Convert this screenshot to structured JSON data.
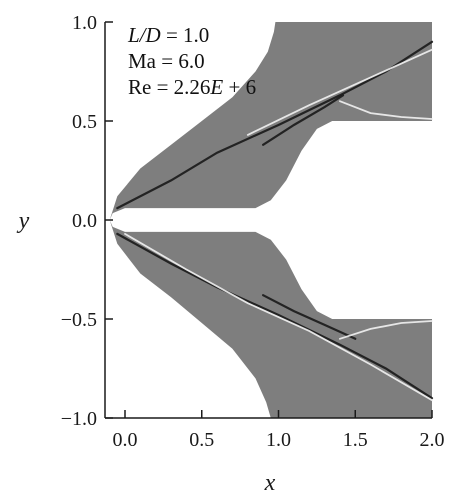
{
  "chart_data": {
    "type": "contour",
    "title": "",
    "xlabel": "x",
    "ylabel": "y",
    "xlim": [
      -0.15,
      2.0
    ],
    "ylim": [
      -1.0,
      1.0
    ],
    "x_ticks": [
      "0.0",
      "0.5",
      "1.0",
      "1.5",
      "2.0"
    ],
    "x_tick_values": [
      0.0,
      0.5,
      1.0,
      1.5,
      2.0
    ],
    "y_ticks": [
      "1.0",
      "0.5",
      "0.0",
      "−0.5",
      "−1.0"
    ],
    "y_tick_values": [
      1.0,
      0.5,
      0.0,
      -0.5,
      -1.0
    ],
    "grid": false,
    "legend": "none",
    "annotations": {
      "line1_var": "L/D",
      "line1_value": "1.0",
      "line2": "Ma = 6.0",
      "line3_prefix": "Re = 2.26",
      "line3_var": "E",
      "line3_suffix": "+ 6"
    },
    "colors": {
      "field": "#7e7e7e",
      "shock_dark": "#1a1a1a",
      "shock_light": "#f2f2f2",
      "background": "#ffffff"
    },
    "upper_domain_outline": [
      [
        -0.1,
        0.0
      ],
      [
        -0.05,
        0.12
      ],
      [
        0.1,
        0.26
      ],
      [
        0.3,
        0.38
      ],
      [
        0.5,
        0.5
      ],
      [
        0.7,
        0.62
      ],
      [
        0.85,
        0.75
      ],
      [
        0.93,
        0.85
      ],
      [
        0.97,
        0.95
      ],
      [
        0.98,
        1.0
      ],
      [
        2.0,
        1.0
      ],
      [
        2.0,
        0.5
      ],
      [
        1.35,
        0.5
      ],
      [
        1.25,
        0.46
      ],
      [
        1.15,
        0.35
      ],
      [
        1.05,
        0.2
      ],
      [
        0.95,
        0.1
      ],
      [
        0.85,
        0.06
      ],
      [
        0.0,
        0.06
      ],
      [
        -0.08,
        0.035
      ],
      [
        -0.1,
        0.0
      ]
    ],
    "lower_domain_outline": [
      [
        -0.1,
        0.0
      ],
      [
        -0.05,
        -0.12
      ],
      [
        0.1,
        -0.27
      ],
      [
        0.3,
        -0.39
      ],
      [
        0.5,
        -0.52
      ],
      [
        0.7,
        -0.65
      ],
      [
        0.85,
        -0.8
      ],
      [
        0.92,
        -0.92
      ],
      [
        0.95,
        -1.0
      ],
      [
        2.0,
        -1.0
      ],
      [
        2.0,
        -0.5
      ],
      [
        1.35,
        -0.5
      ],
      [
        1.25,
        -0.46
      ],
      [
        1.15,
        -0.35
      ],
      [
        1.05,
        -0.2
      ],
      [
        0.95,
        -0.1
      ],
      [
        0.85,
        -0.06
      ],
      [
        0.0,
        -0.06
      ],
      [
        -0.08,
        -0.035
      ],
      [
        -0.1,
        0.0
      ]
    ],
    "shock_lines": [
      {
        "name": "upper-bow-shock",
        "tone": "dark",
        "points": [
          [
            -0.05,
            0.06
          ],
          [
            0.3,
            0.2
          ],
          [
            0.6,
            0.34
          ],
          [
            1.0,
            0.48
          ],
          [
            1.4,
            0.63
          ],
          [
            1.7,
            0.75
          ],
          [
            2.0,
            0.9
          ]
        ]
      },
      {
        "name": "upper-separation-shock",
        "tone": "dark",
        "points": [
          [
            0.9,
            0.38
          ],
          [
            1.1,
            0.48
          ],
          [
            1.3,
            0.57
          ],
          [
            1.42,
            0.63
          ]
        ]
      },
      {
        "name": "upper-reflected-wave",
        "tone": "light",
        "points": [
          [
            0.8,
            0.43
          ],
          [
            1.2,
            0.58
          ],
          [
            1.6,
            0.72
          ],
          [
            2.0,
            0.86
          ]
        ]
      },
      {
        "name": "upper-expansion-fan",
        "tone": "light",
        "points": [
          [
            1.4,
            0.6
          ],
          [
            1.6,
            0.54
          ],
          [
            1.8,
            0.52
          ],
          [
            2.0,
            0.51
          ]
        ]
      },
      {
        "name": "lower-bow-shock",
        "tone": "dark",
        "points": [
          [
            -0.05,
            -0.07
          ],
          [
            0.3,
            -0.22
          ],
          [
            0.6,
            -0.34
          ],
          [
            1.0,
            -0.48
          ],
          [
            1.4,
            -0.63
          ],
          [
            1.7,
            -0.75
          ],
          [
            2.0,
            -0.9
          ]
        ]
      },
      {
        "name": "lower-reflected-wave",
        "tone": "light",
        "points": [
          [
            0.0,
            -0.07
          ],
          [
            0.4,
            -0.25
          ],
          [
            0.8,
            -0.42
          ],
          [
            1.2,
            -0.56
          ],
          [
            1.6,
            -0.73
          ],
          [
            2.0,
            -0.91
          ]
        ]
      },
      {
        "name": "lower-separation-shock",
        "tone": "dark",
        "points": [
          [
            0.9,
            -0.38
          ],
          [
            1.1,
            -0.46
          ],
          [
            1.3,
            -0.53
          ],
          [
            1.5,
            -0.6
          ]
        ]
      },
      {
        "name": "lower-expansion-fan",
        "tone": "light",
        "points": [
          [
            1.4,
            -0.6
          ],
          [
            1.6,
            -0.55
          ],
          [
            1.8,
            -0.52
          ],
          [
            2.0,
            -0.51
          ]
        ]
      }
    ]
  }
}
